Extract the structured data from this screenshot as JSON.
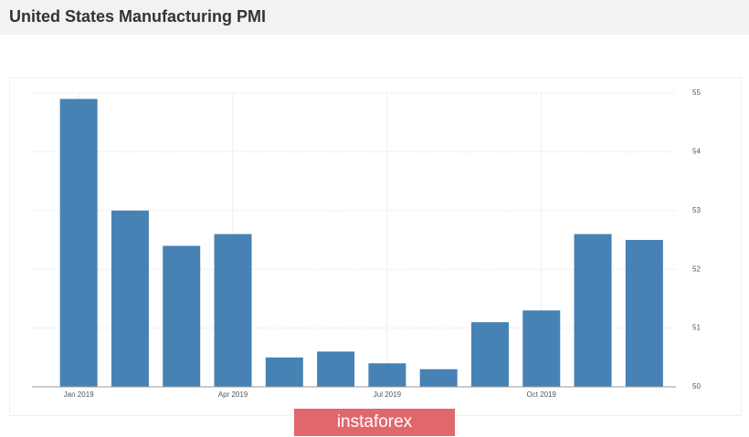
{
  "chart_data": {
    "type": "bar",
    "title": "United States Manufacturing PMI",
    "categories": [
      "Jan 2019",
      null,
      null,
      "Apr 2019",
      null,
      null,
      "Jul 2019",
      null,
      null,
      "Oct 2019",
      null,
      null
    ],
    "values": [
      54.9,
      53.0,
      52.4,
      52.6,
      50.5,
      50.6,
      50.4,
      50.3,
      51.1,
      51.3,
      52.6,
      52.5
    ],
    "color": "#4682b4",
    "ylim": [
      50,
      55
    ],
    "yticks": [
      50,
      51,
      52,
      53,
      54,
      55
    ],
    "grid": true
  },
  "watermark": "instaforex"
}
